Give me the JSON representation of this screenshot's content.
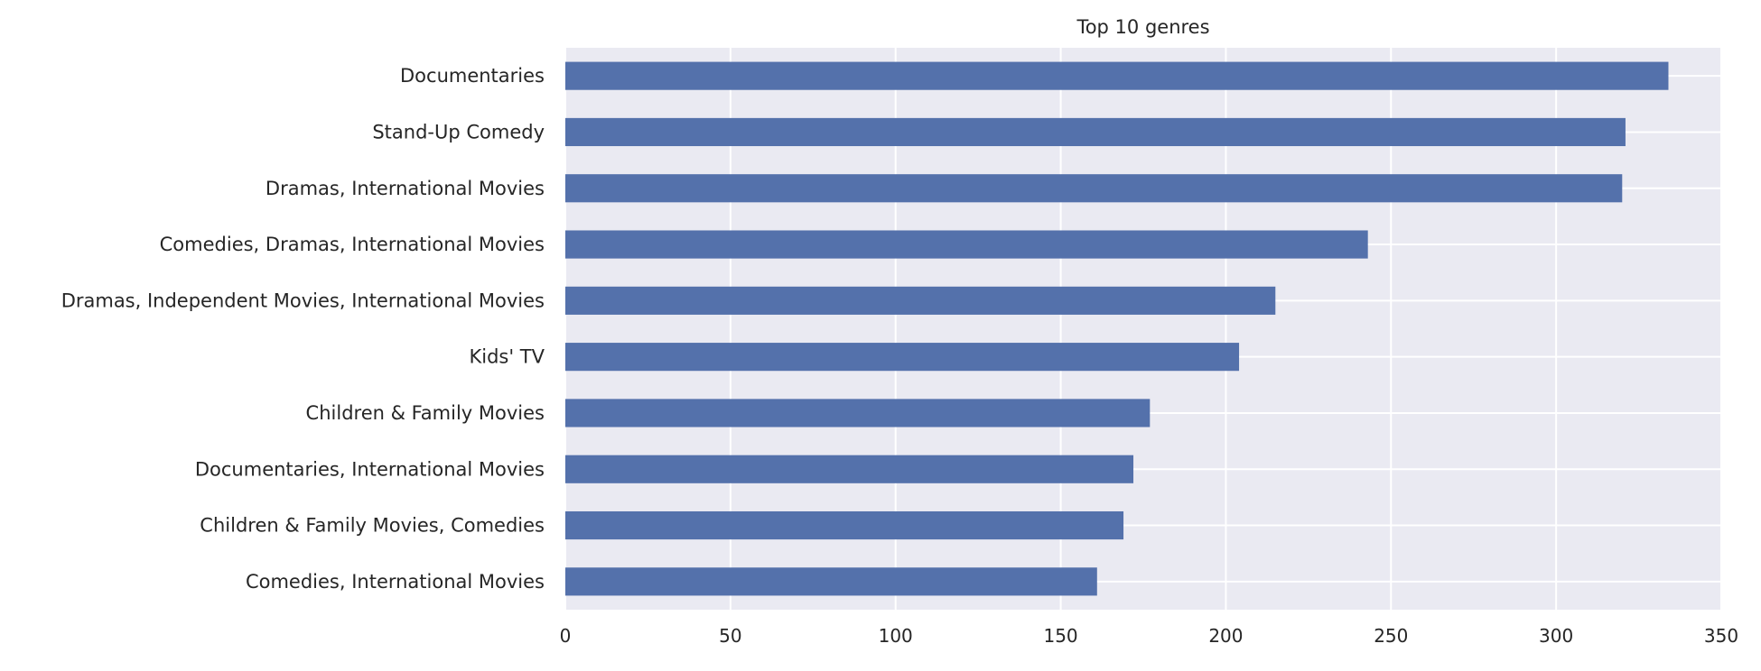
{
  "chart_data": {
    "type": "bar",
    "orientation": "horizontal",
    "title": "Top 10 genres",
    "xlabel": "",
    "ylabel": "",
    "categories": [
      "Comedies, International Movies",
      "Children & Family Movies, Comedies",
      "Documentaries, International Movies",
      "Children & Family Movies",
      "Kids' TV",
      "Dramas, Independent Movies, International Movies",
      "Comedies, Dramas, International Movies",
      "Dramas, International Movies",
      "Stand-Up Comedy",
      "Documentaries"
    ],
    "values": [
      161,
      169,
      172,
      177,
      204,
      215,
      243,
      320,
      321,
      334
    ],
    "xlim": [
      0,
      350
    ],
    "xticks": [
      0,
      50,
      100,
      150,
      200,
      250,
      300,
      350
    ],
    "grid": true,
    "legend": "none",
    "colors": {
      "bar": "#5471ab",
      "axes_bg": "#eaeaf2",
      "grid": "#ffffff",
      "text": "#262626"
    }
  }
}
